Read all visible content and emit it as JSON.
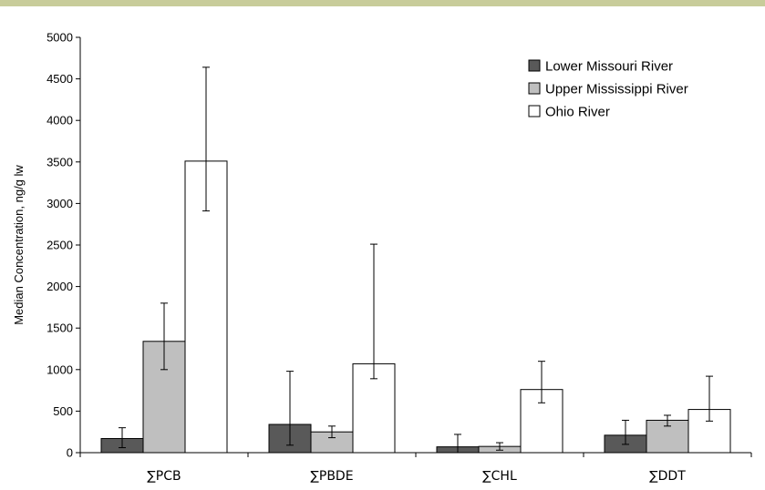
{
  "chart_data": {
    "type": "bar",
    "title": "",
    "xlabel": "",
    "ylabel": "Median Concentration, ng/g lw",
    "ylim": [
      0,
      5000
    ],
    "yticks": [
      0,
      500,
      1000,
      1500,
      2000,
      2500,
      3000,
      3500,
      4000,
      4500,
      5000
    ],
    "grid": false,
    "legend_position": "top-right",
    "categories": [
      "∑PCB",
      "∑PBDE",
      "∑CHL",
      "∑DDT"
    ],
    "series": [
      {
        "name": "Lower Missouri River",
        "color": "#595959",
        "values": [
          170,
          340,
          70,
          210
        ],
        "error_low": [
          60,
          90,
          0,
          100
        ],
        "error_high": [
          300,
          980,
          220,
          390
        ]
      },
      {
        "name": "Upper Mississippi River",
        "color": "#bfbfbf",
        "values": [
          1340,
          250,
          75,
          390
        ],
        "error_low": [
          1000,
          180,
          30,
          320
        ],
        "error_high": [
          1800,
          320,
          120,
          450
        ]
      },
      {
        "name": "Ohio River",
        "color": "#ffffff",
        "values": [
          3510,
          1070,
          760,
          520
        ],
        "error_low": [
          2910,
          890,
          600,
          380
        ],
        "error_high": [
          4640,
          2510,
          1100,
          920
        ]
      }
    ]
  }
}
